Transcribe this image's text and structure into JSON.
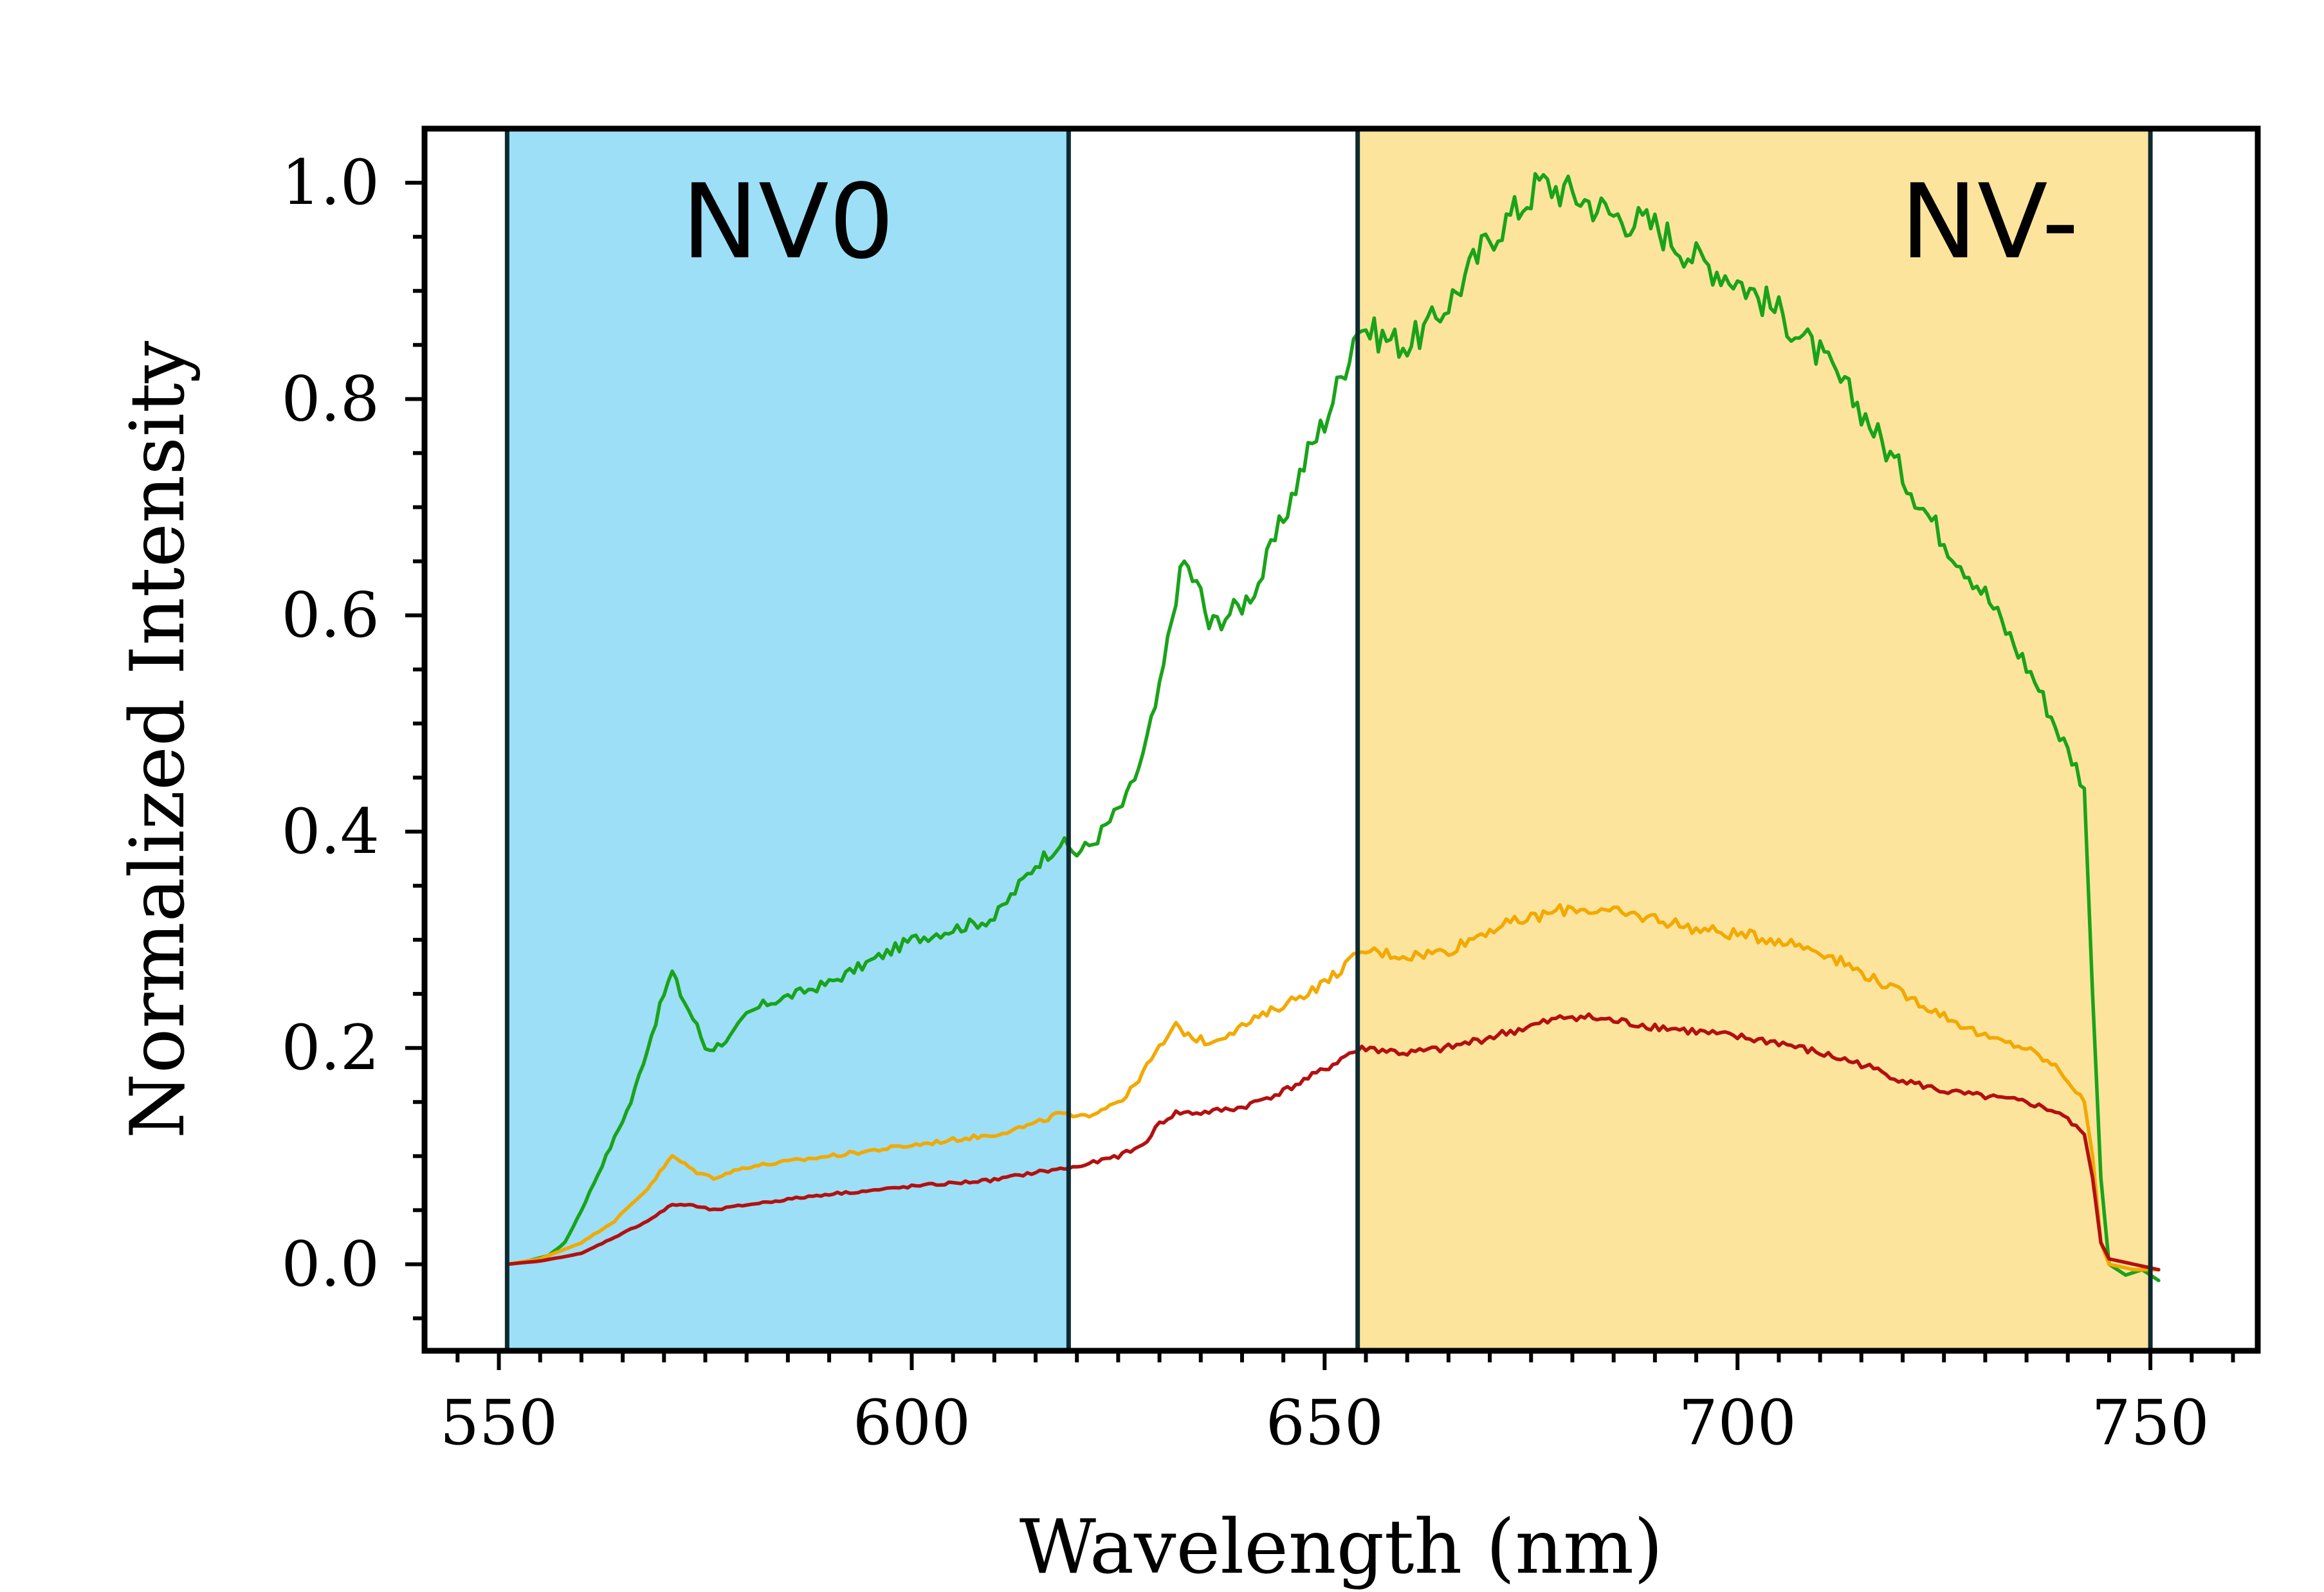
{
  "chart_data": {
    "type": "line",
    "title": "",
    "xlabel": "Wavelength (nm)",
    "ylabel": "Normalized Intensity",
    "xlim": [
      541,
      763
    ],
    "ylim": [
      -0.08,
      1.05
    ],
    "x_ticks": [
      550,
      600,
      650,
      700,
      750
    ],
    "x_tick_labels": [
      "550",
      "600",
      "650",
      "700",
      "750"
    ],
    "x_minor_step": 5,
    "y_ticks": [
      0.0,
      0.2,
      0.4,
      0.6,
      0.8,
      1.0
    ],
    "y_tick_labels": [
      "0.0",
      "0.2",
      "0.4",
      "0.6",
      "0.8",
      "1.0"
    ],
    "y_minor_step": 0.05,
    "grid": false,
    "bands": [
      {
        "name": "NV0",
        "label": "NV0",
        "x_start": 551,
        "x_end": 619,
        "color": "#9cdff7"
      },
      {
        "name": "NV-",
        "label": "NV-",
        "x_start": 654,
        "x_end": 750,
        "color": "#fde49c"
      }
    ],
    "series": [
      {
        "name": "spectrum-green",
        "color": "#1aa31a",
        "points": [
          [
            551,
            0.0
          ],
          [
            553,
            0.002
          ],
          [
            556,
            0.008
          ],
          [
            558,
            0.02
          ],
          [
            560,
            0.05
          ],
          [
            563,
            0.1
          ],
          [
            566,
            0.15
          ],
          [
            568,
            0.2
          ],
          [
            570,
            0.25
          ],
          [
            571,
            0.27
          ],
          [
            572,
            0.25
          ],
          [
            574,
            0.22
          ],
          [
            575,
            0.2
          ],
          [
            576,
            0.2
          ],
          [
            578,
            0.21
          ],
          [
            580,
            0.23
          ],
          [
            582,
            0.24
          ],
          [
            586,
            0.25
          ],
          [
            590,
            0.26
          ],
          [
            595,
            0.28
          ],
          [
            600,
            0.3
          ],
          [
            605,
            0.31
          ],
          [
            610,
            0.32
          ],
          [
            612,
            0.34
          ],
          [
            615,
            0.37
          ],
          [
            618,
            0.39
          ],
          [
            620,
            0.38
          ],
          [
            622,
            0.39
          ],
          [
            624,
            0.41
          ],
          [
            626,
            0.43
          ],
          [
            628,
            0.47
          ],
          [
            630,
            0.53
          ],
          [
            632,
            0.62
          ],
          [
            633,
            0.65
          ],
          [
            635,
            0.62
          ],
          [
            636,
            0.59
          ],
          [
            638,
            0.6
          ],
          [
            640,
            0.61
          ],
          [
            642,
            0.63
          ],
          [
            644,
            0.67
          ],
          [
            646,
            0.71
          ],
          [
            648,
            0.75
          ],
          [
            650,
            0.78
          ],
          [
            652,
            0.82
          ],
          [
            654,
            0.87
          ],
          [
            656,
            0.86
          ],
          [
            660,
            0.85
          ],
          [
            663,
            0.87
          ],
          [
            666,
            0.9
          ],
          [
            670,
            0.95
          ],
          [
            674,
            0.98
          ],
          [
            676,
            1.0
          ],
          [
            680,
            0.99
          ],
          [
            685,
            0.97
          ],
          [
            690,
            0.96
          ],
          [
            695,
            0.93
          ],
          [
            700,
            0.91
          ],
          [
            705,
            0.88
          ],
          [
            710,
            0.84
          ],
          [
            715,
            0.79
          ],
          [
            720,
            0.73
          ],
          [
            725,
            0.67
          ],
          [
            730,
            0.62
          ],
          [
            733,
            0.58
          ],
          [
            736,
            0.54
          ],
          [
            739,
            0.49
          ],
          [
            741,
            0.46
          ],
          [
            742,
            0.44
          ],
          [
            743,
            0.25
          ],
          [
            744,
            0.08
          ],
          [
            745,
            0.0
          ],
          [
            747,
            -0.01
          ],
          [
            749,
            -0.005
          ],
          [
            751,
            -0.015
          ]
        ]
      },
      {
        "name": "spectrum-orange",
        "color": "#f2a900",
        "points": [
          [
            551,
            0.0
          ],
          [
            555,
            0.005
          ],
          [
            560,
            0.02
          ],
          [
            564,
            0.04
          ],
          [
            568,
            0.07
          ],
          [
            570,
            0.09
          ],
          [
            571,
            0.1
          ],
          [
            572,
            0.095
          ],
          [
            574,
            0.085
          ],
          [
            576,
            0.08
          ],
          [
            580,
            0.09
          ],
          [
            585,
            0.095
          ],
          [
            590,
            0.1
          ],
          [
            595,
            0.105
          ],
          [
            600,
            0.11
          ],
          [
            605,
            0.115
          ],
          [
            610,
            0.12
          ],
          [
            615,
            0.13
          ],
          [
            618,
            0.14
          ],
          [
            620,
            0.135
          ],
          [
            622,
            0.14
          ],
          [
            626,
            0.155
          ],
          [
            630,
            0.2
          ],
          [
            632,
            0.22
          ],
          [
            634,
            0.21
          ],
          [
            636,
            0.205
          ],
          [
            640,
            0.22
          ],
          [
            645,
            0.24
          ],
          [
            650,
            0.26
          ],
          [
            653,
            0.28
          ],
          [
            655,
            0.29
          ],
          [
            660,
            0.285
          ],
          [
            665,
            0.29
          ],
          [
            670,
            0.31
          ],
          [
            675,
            0.32
          ],
          [
            680,
            0.33
          ],
          [
            685,
            0.325
          ],
          [
            690,
            0.32
          ],
          [
            695,
            0.31
          ],
          [
            700,
            0.305
          ],
          [
            705,
            0.3
          ],
          [
            710,
            0.29
          ],
          [
            715,
            0.27
          ],
          [
            720,
            0.25
          ],
          [
            725,
            0.23
          ],
          [
            730,
            0.21
          ],
          [
            735,
            0.2
          ],
          [
            739,
            0.18
          ],
          [
            742,
            0.15
          ],
          [
            743,
            0.1
          ],
          [
            744,
            0.02
          ],
          [
            745,
            0.0
          ],
          [
            748,
            -0.005
          ],
          [
            751,
            -0.005
          ]
        ]
      },
      {
        "name": "spectrum-red",
        "color": "#b31010",
        "points": [
          [
            551,
            0.0
          ],
          [
            555,
            0.003
          ],
          [
            560,
            0.01
          ],
          [
            564,
            0.025
          ],
          [
            568,
            0.04
          ],
          [
            571,
            0.055
          ],
          [
            573,
            0.055
          ],
          [
            576,
            0.05
          ],
          [
            580,
            0.055
          ],
          [
            585,
            0.06
          ],
          [
            590,
            0.065
          ],
          [
            595,
            0.068
          ],
          [
            600,
            0.072
          ],
          [
            605,
            0.075
          ],
          [
            610,
            0.078
          ],
          [
            615,
            0.085
          ],
          [
            618,
            0.088
          ],
          [
            620,
            0.09
          ],
          [
            625,
            0.1
          ],
          [
            628,
            0.11
          ],
          [
            630,
            0.13
          ],
          [
            632,
            0.14
          ],
          [
            635,
            0.14
          ],
          [
            640,
            0.145
          ],
          [
            645,
            0.16
          ],
          [
            650,
            0.18
          ],
          [
            653,
            0.195
          ],
          [
            655,
            0.2
          ],
          [
            660,
            0.195
          ],
          [
            665,
            0.2
          ],
          [
            670,
            0.21
          ],
          [
            675,
            0.22
          ],
          [
            680,
            0.23
          ],
          [
            685,
            0.225
          ],
          [
            690,
            0.22
          ],
          [
            695,
            0.215
          ],
          [
            700,
            0.21
          ],
          [
            705,
            0.205
          ],
          [
            710,
            0.195
          ],
          [
            715,
            0.185
          ],
          [
            720,
            0.17
          ],
          [
            725,
            0.16
          ],
          [
            730,
            0.155
          ],
          [
            735,
            0.15
          ],
          [
            739,
            0.14
          ],
          [
            742,
            0.12
          ],
          [
            743,
            0.08
          ],
          [
            744,
            0.02
          ],
          [
            745,
            0.005
          ],
          [
            748,
            0.0
          ],
          [
            751,
            -0.005
          ]
        ]
      }
    ]
  }
}
